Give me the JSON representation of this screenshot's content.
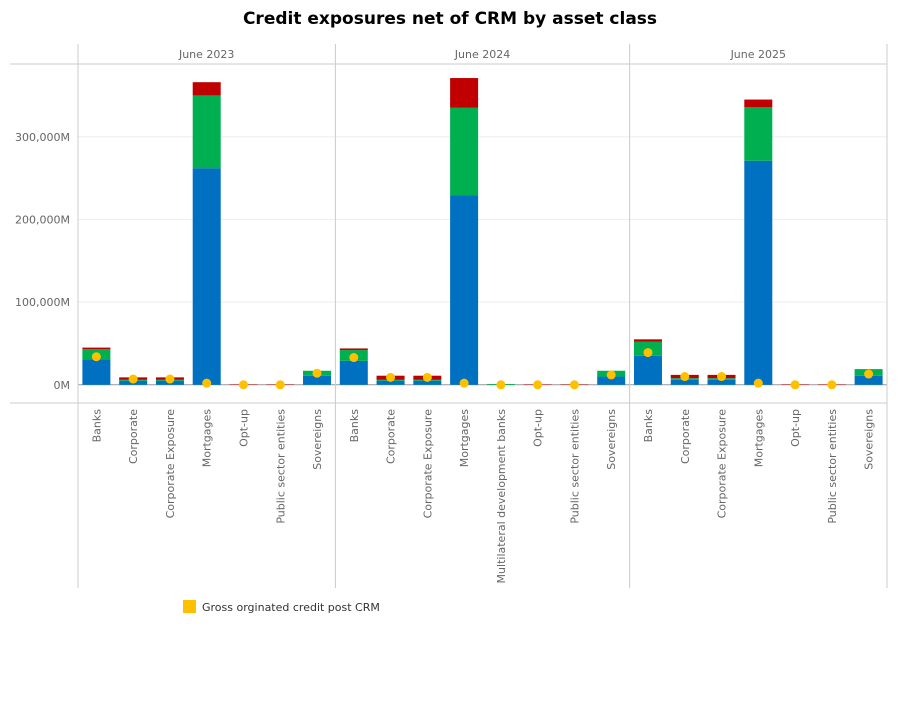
{
  "chart_data": {
    "type": "bar",
    "stacked": true,
    "title": "Credit exposures net of CRM by asset class",
    "ylim": [
      -22000,
      388000
    ],
    "yticks": [
      {
        "value": 0,
        "label": "0M"
      },
      {
        "value": 100000,
        "label": "100,000M"
      },
      {
        "value": 200000,
        "label": "200,000M"
      },
      {
        "value": 300000,
        "label": "300,000M"
      }
    ],
    "grid": true,
    "marker_series": {
      "name": "Gross orginated credit post CRM",
      "color": "#ffc000"
    },
    "panels": [
      {
        "label": "June 2023",
        "categories": [
          "Banks",
          "Corporate",
          "Corporate Exposure",
          "Mortgages",
          "Opt-up",
          "Public sector entities",
          "Sovereigns"
        ],
        "series": [
          {
            "color": "#0070c0",
            "values": [
              31000,
              5000,
              5000,
              262000,
              0,
              0,
              11000
            ]
          },
          {
            "color": "#00b050",
            "values": [
              12000,
              1000,
              1000,
              88000,
              0,
              0,
              6000
            ]
          },
          {
            "color": "#c00000",
            "values": [
              2000,
              3000,
              3000,
              16000,
              500,
              500,
              0
            ]
          }
        ],
        "marker_values": [
          34000,
          7000,
          7000,
          2000,
          0,
          0,
          14000
        ]
      },
      {
        "label": "June 2024",
        "categories": [
          "Banks",
          "Corporate",
          "Corporate Exposure",
          "Mortgages",
          "Multilateral development banks",
          "Opt-up",
          "Public sector entities",
          "Sovereigns"
        ],
        "series": [
          {
            "color": "#0070c0",
            "values": [
              29000,
              5000,
              5000,
              229000,
              0,
              0,
              0,
              10000
            ]
          },
          {
            "color": "#00b050",
            "values": [
              13000,
              1000,
              1000,
              106000,
              1000,
              0,
              0,
              7000
            ]
          },
          {
            "color": "#c00000",
            "values": [
              2000,
              5000,
              5000,
              36000,
              0,
              500,
              500,
              0
            ]
          }
        ],
        "marker_values": [
          33000,
          9000,
          9000,
          2000,
          0,
          0,
          0,
          12000
        ]
      },
      {
        "label": "June 2025",
        "categories": [
          "Banks",
          "Corporate",
          "Corporate Exposure",
          "Mortgages",
          "Opt-up",
          "Public sector entities",
          "Sovereigns"
        ],
        "series": [
          {
            "color": "#0070c0",
            "values": [
              35000,
              6000,
              6000,
              271000,
              0,
              0,
              11000
            ]
          },
          {
            "color": "#00b050",
            "values": [
              17000,
              2000,
              2000,
              65000,
              0,
              0,
              8000
            ]
          },
          {
            "color": "#c00000",
            "values": [
              3000,
              4000,
              4000,
              9000,
              500,
              500,
              0
            ]
          }
        ],
        "marker_values": [
          39000,
          10000,
          10000,
          2000,
          0,
          0,
          13000
        ]
      }
    ]
  }
}
